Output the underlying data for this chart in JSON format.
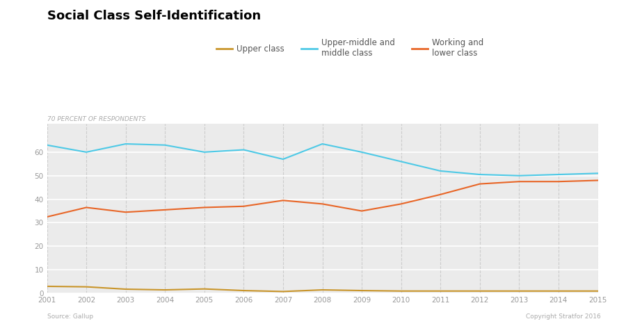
{
  "title": "Social Class Self-Identification",
  "ylabel": "70 PERCENT OF RESPONDENTS",
  "source_left": "Source: Gallup",
  "source_right": "Copyright Stratfor 2016",
  "years": [
    2001,
    2002,
    2003,
    2004,
    2005,
    2006,
    2007,
    2008,
    2009,
    2010,
    2011,
    2012,
    2013,
    2014,
    2015
  ],
  "upper_class": [
    3.0,
    2.8,
    1.8,
    1.5,
    1.9,
    1.2,
    0.8,
    1.5,
    1.2,
    1.0,
    1.0,
    1.0,
    1.0,
    1.0,
    1.0
  ],
  "upper_middle_class": [
    63.0,
    60.0,
    63.5,
    63.0,
    60.0,
    61.0,
    57.0,
    63.5,
    60.0,
    56.0,
    52.0,
    50.5,
    50.0,
    50.5,
    51.0
  ],
  "working_lower_class": [
    32.5,
    36.5,
    34.5,
    35.5,
    36.5,
    37.0,
    39.5,
    38.0,
    35.0,
    38.0,
    42.0,
    46.5,
    47.5,
    47.5,
    48.0
  ],
  "upper_class_color": "#C9952A",
  "upper_middle_color": "#4DC9E6",
  "working_lower_color": "#E86526",
  "bg_color": "#ebebeb",
  "yticks": [
    0,
    10,
    20,
    30,
    40,
    50,
    60
  ],
  "ylim": [
    0,
    72
  ],
  "legend_labels": [
    "Upper class",
    "Upper-middle and\nmiddle class",
    "Working and\nlower class"
  ],
  "title_fontsize": 13,
  "tick_fontsize": 7.5
}
